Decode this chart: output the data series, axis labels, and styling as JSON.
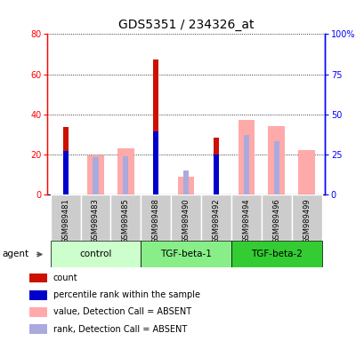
{
  "title": "GDS5351 / 234326_at",
  "samples": [
    "GSM989481",
    "GSM989483",
    "GSM989485",
    "GSM989488",
    "GSM989490",
    "GSM989492",
    "GSM989494",
    "GSM989496",
    "GSM989499"
  ],
  "groups": [
    {
      "name": "control",
      "indices": [
        0,
        1,
        2
      ],
      "color": "#ccffcc"
    },
    {
      "name": "TGF-beta-1",
      "indices": [
        3,
        4,
        5
      ],
      "color": "#88ee88"
    },
    {
      "name": "TGF-beta-2",
      "indices": [
        6,
        7,
        8
      ],
      "color": "#44cc44"
    }
  ],
  "count_values": [
    33.5,
    0,
    0,
    67.5,
    0,
    28.5,
    0,
    0,
    0
  ],
  "percentile_rank_values": [
    27,
    0,
    0,
    39,
    0,
    25,
    0,
    0,
    0
  ],
  "absent_value_values": [
    0,
    24.5,
    28.5,
    0,
    11,
    0,
    46.5,
    42.5,
    27.5
  ],
  "absent_rank_values": [
    0,
    23,
    24,
    0,
    15,
    0,
    37,
    33,
    0
  ],
  "ylim_left": [
    0,
    80
  ],
  "ylim_right": [
    0,
    100
  ],
  "yticks_left": [
    0,
    20,
    40,
    60,
    80
  ],
  "yticks_right": [
    0,
    25,
    50,
    75,
    100
  ],
  "count_color": "#cc1100",
  "percentile_color": "#0000cc",
  "absent_value_color": "#ffaaaa",
  "absent_rank_color": "#aaaadd",
  "legend_items": [
    {
      "label": "count",
      "color": "#cc1100"
    },
    {
      "label": "percentile rank within the sample",
      "color": "#0000cc"
    },
    {
      "label": "value, Detection Call = ABSENT",
      "color": "#ffaaaa"
    },
    {
      "label": "rank, Detection Call = ABSENT",
      "color": "#aaaadd"
    }
  ],
  "fig_width": 4.1,
  "fig_height": 3.84,
  "dpi": 100
}
